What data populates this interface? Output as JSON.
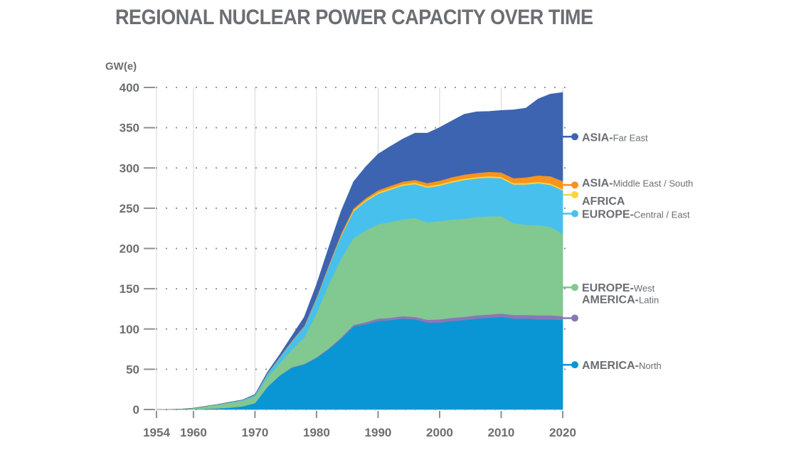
{
  "chart_data": {
    "type": "area",
    "title": "REGIONAL NUCLEAR POWER CAPACITY OVER TIME",
    "ylabel": "GW(e)",
    "xlabel": "",
    "stacked": true,
    "grid": "dotted horizontal",
    "legend_placement": "right",
    "xlim": [
      1954,
      2020
    ],
    "ylim": [
      0,
      400
    ],
    "x_ticks": [
      1954,
      1960,
      1970,
      1980,
      1990,
      2000,
      2010,
      2020
    ],
    "y_ticks": [
      0,
      50,
      100,
      150,
      200,
      250,
      300,
      350,
      400
    ],
    "x": [
      1954,
      1956,
      1958,
      1960,
      1962,
      1964,
      1966,
      1968,
      1970,
      1972,
      1974,
      1976,
      1978,
      1980,
      1982,
      1984,
      1986,
      1988,
      1990,
      1992,
      1994,
      1996,
      1998,
      2000,
      2002,
      2004,
      2006,
      2008,
      2010,
      2012,
      2014,
      2016,
      2018,
      2020
    ],
    "series": [
      {
        "name": "AMERICA-North",
        "main": "AMERICA-",
        "sub": "North",
        "color": "#0a95d5",
        "values": [
          0,
          0,
          0,
          0.2,
          0.8,
          1.5,
          2.5,
          4,
          8,
          28,
          42,
          52,
          56,
          64,
          75,
          88,
          103,
          106,
          110,
          111,
          113,
          112,
          108,
          108,
          110,
          111,
          113,
          114,
          115,
          113,
          113,
          112,
          112,
          111
        ]
      },
      {
        "name": "AMERICA-Latin",
        "main": "AMERICA-",
        "sub": "Latin",
        "color": "#8a78b6",
        "values": [
          0,
          0,
          0,
          0,
          0,
          0,
          0,
          0,
          0,
          0,
          0.3,
          0.5,
          0.6,
          0.8,
          1,
          1.5,
          2,
          2.5,
          3,
          3,
          3,
          3,
          3.5,
          4,
          4,
          4,
          4,
          4,
          4.2,
          4.5,
          4.5,
          5,
          5,
          5
        ]
      },
      {
        "name": "EUROPE-West",
        "main": "EUROPE-",
        "sub": "West",
        "color": "#82c891",
        "values": [
          0,
          0.1,
          0.5,
          1.5,
          3,
          4.5,
          6,
          7,
          8,
          12,
          15,
          22,
          33,
          55,
          80,
          98,
          108,
          114,
          117,
          119,
          120,
          123,
          121,
          122,
          122,
          122,
          122,
          122,
          121,
          114,
          112,
          112,
          110,
          102
        ]
      },
      {
        "name": "EUROPE-Central / East",
        "main": "EUROPE-",
        "sub": "Central / East",
        "color": "#48c0ee",
        "values": [
          0,
          0,
          0,
          0,
          0.2,
          0.5,
          0.8,
          1,
          2,
          4,
          7,
          10,
          13,
          18,
          22,
          28,
          33,
          36,
          38,
          40,
          42,
          42,
          43,
          44,
          46,
          48,
          48,
          48,
          47,
          48,
          50,
          52,
          52,
          54
        ]
      },
      {
        "name": "AFRICA",
        "main": "AFRICA",
        "sub": "",
        "color": "#fdd43a",
        "values": [
          0,
          0,
          0,
          0,
          0,
          0,
          0,
          0,
          0,
          0,
          0,
          0,
          0,
          0,
          0,
          1,
          1.8,
          1.8,
          1.8,
          1.8,
          1.8,
          1.8,
          1.8,
          1.8,
          1.8,
          1.8,
          1.8,
          1.8,
          1.8,
          1.8,
          1.8,
          1.8,
          1.8,
          1.8
        ]
      },
      {
        "name": "ASIA-Middle East / South",
        "main": "ASIA-",
        "sub": "Middle East / South",
        "color": "#f7931e",
        "values": [
          0,
          0,
          0,
          0,
          0,
          0,
          0,
          0,
          0.3,
          0.6,
          0.8,
          1,
          1.2,
          1.5,
          1.8,
          2,
          2,
          2.3,
          2.5,
          3,
          3.2,
          3.5,
          4,
          4.5,
          4.8,
          5,
          5,
          5.5,
          5.5,
          6,
          7,
          8,
          9,
          10
        ]
      },
      {
        "name": "ASIA-Far East",
        "main": "ASIA-",
        "sub": "Far East",
        "color": "#3d64b0",
        "values": [
          0,
          0,
          0,
          0,
          0,
          0,
          0,
          0,
          0.5,
          1.5,
          3,
          6,
          11,
          16,
          22,
          28,
          33,
          39,
          45,
          49,
          53,
          58,
          62,
          66,
          70,
          75,
          76,
          75,
          77,
          85,
          86,
          95,
          102,
          110
        ]
      }
    ]
  }
}
